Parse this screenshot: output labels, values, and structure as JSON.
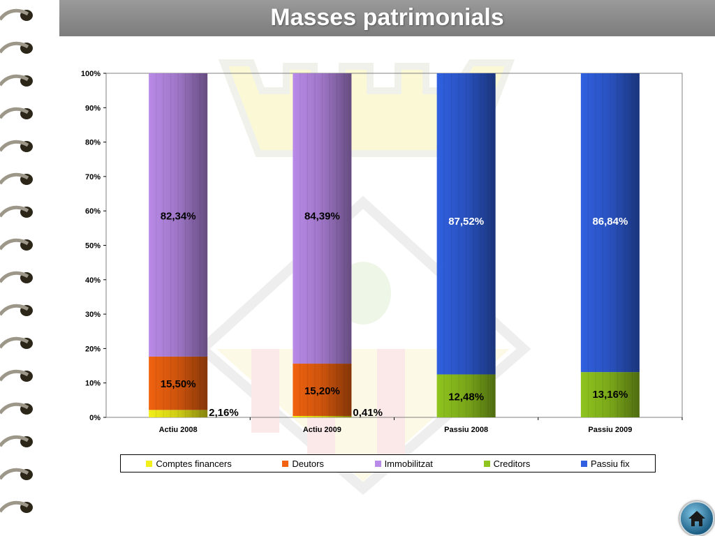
{
  "page": {
    "title": "Masses patrimonials"
  },
  "colors": {
    "comptes_financers": "#f2ef1a",
    "deutors": "#f0620f",
    "immobilitzat": "#b98ae8",
    "creditors": "#8fc41e",
    "passiu_fix": "#3060e0"
  },
  "chart_data": {
    "type": "bar",
    "stacked": true,
    "percent_stacked": true,
    "categories": [
      "Actiu 2008",
      "Actiu 2009",
      "Passiu 2008",
      "Passiu 2009"
    ],
    "series": [
      {
        "name": "Comptes financers",
        "values": [
          2.16,
          0.41,
          0,
          0
        ]
      },
      {
        "name": "Deutors",
        "values": [
          15.5,
          15.2,
          0,
          0
        ]
      },
      {
        "name": "Immobilitzat",
        "values": [
          82.34,
          84.39,
          0,
          0
        ]
      },
      {
        "name": "Creditors",
        "values": [
          0,
          0,
          12.48,
          13.16
        ]
      },
      {
        "name": "Passiu fix",
        "values": [
          0,
          0,
          87.52,
          86.84
        ]
      }
    ],
    "data_labels": [
      {
        "category": "Actiu 2008",
        "series": "Immobilitzat",
        "text": "82,34%"
      },
      {
        "category": "Actiu 2008",
        "series": "Deutors",
        "text": "15,50%"
      },
      {
        "category": "Actiu 2008",
        "series": "Comptes financers",
        "text": "2,16%"
      },
      {
        "category": "Actiu 2009",
        "series": "Immobilitzat",
        "text": "84,39%"
      },
      {
        "category": "Actiu 2009",
        "series": "Deutors",
        "text": "15,20%"
      },
      {
        "category": "Actiu 2009",
        "series": "Comptes financers",
        "text": "0,41%"
      },
      {
        "category": "Passiu 2008",
        "series": "Passiu fix",
        "text": "87,52%"
      },
      {
        "category": "Passiu 2008",
        "series": "Creditors",
        "text": "12,48%"
      },
      {
        "category": "Passiu 2009",
        "series": "Passiu fix",
        "text": "86,84%"
      },
      {
        "category": "Passiu 2009",
        "series": "Creditors",
        "text": "13,16%"
      }
    ],
    "yticks": [
      "0%",
      "10%",
      "20%",
      "30%",
      "40%",
      "50%",
      "60%",
      "70%",
      "80%",
      "90%",
      "100%"
    ],
    "ylim": [
      0,
      100
    ],
    "legend_position": "bottom",
    "grid": false
  },
  "legend": {
    "items": [
      {
        "label": "Comptes financers",
        "color": "#f2ef1a"
      },
      {
        "label": "Deutors",
        "color": "#f0620f"
      },
      {
        "label": "Immobilitzat",
        "color": "#b98ae8"
      },
      {
        "label": "Creditors",
        "color": "#8fc41e"
      },
      {
        "label": "Passiu fix",
        "color": "#3060e0"
      }
    ]
  },
  "nav": {
    "home_icon": "home-icon"
  }
}
